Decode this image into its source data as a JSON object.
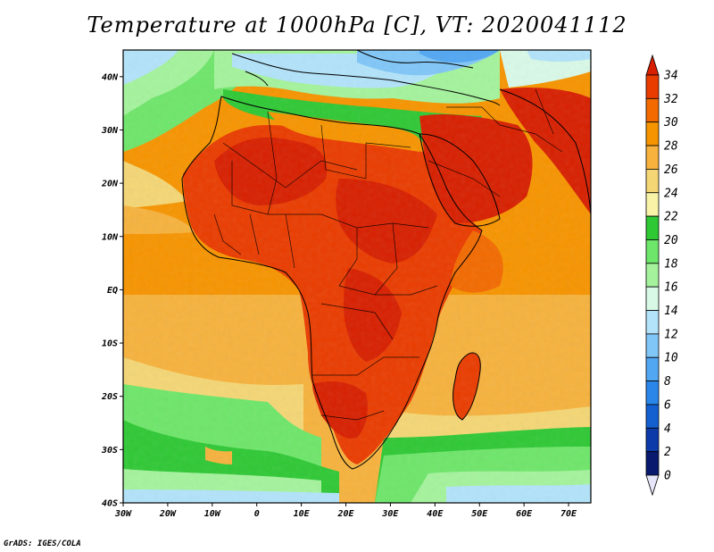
{
  "title": "Temperature at 1000hPa [C], VT: 2020041112",
  "credit": "GrADS: IGES/COLA",
  "map": {
    "lon_range": [
      -30,
      75
    ],
    "lat_range": [
      -40,
      45
    ],
    "lat_ticks": [
      "40N",
      "30N",
      "20N",
      "10N",
      "EQ",
      "10S",
      "20S",
      "30S",
      "40S"
    ],
    "lon_ticks": [
      "30W",
      "20W",
      "10W",
      "0",
      "10E",
      "20E",
      "30E",
      "40E",
      "50E",
      "60E",
      "70E"
    ]
  },
  "colorbar": {
    "labels": [
      "34",
      "32",
      "30",
      "28",
      "26",
      "24",
      "22",
      "20",
      "18",
      "16",
      "14",
      "12",
      "10",
      "8",
      "6",
      "4",
      "2",
      "0"
    ],
    "colors": [
      "#d71f00",
      "#e93c00",
      "#f26a00",
      "#f69400",
      "#f6b23d",
      "#f4d675",
      "#f8f3a7",
      "#2fc835",
      "#6ee66a",
      "#a4f39c",
      "#d9f9e7",
      "#b2e3fa",
      "#80c6f7",
      "#52a7f2",
      "#2a86e9",
      "#1460d1",
      "#0c3aa8",
      "#091a6e",
      "#e6e6fb"
    ]
  }
}
